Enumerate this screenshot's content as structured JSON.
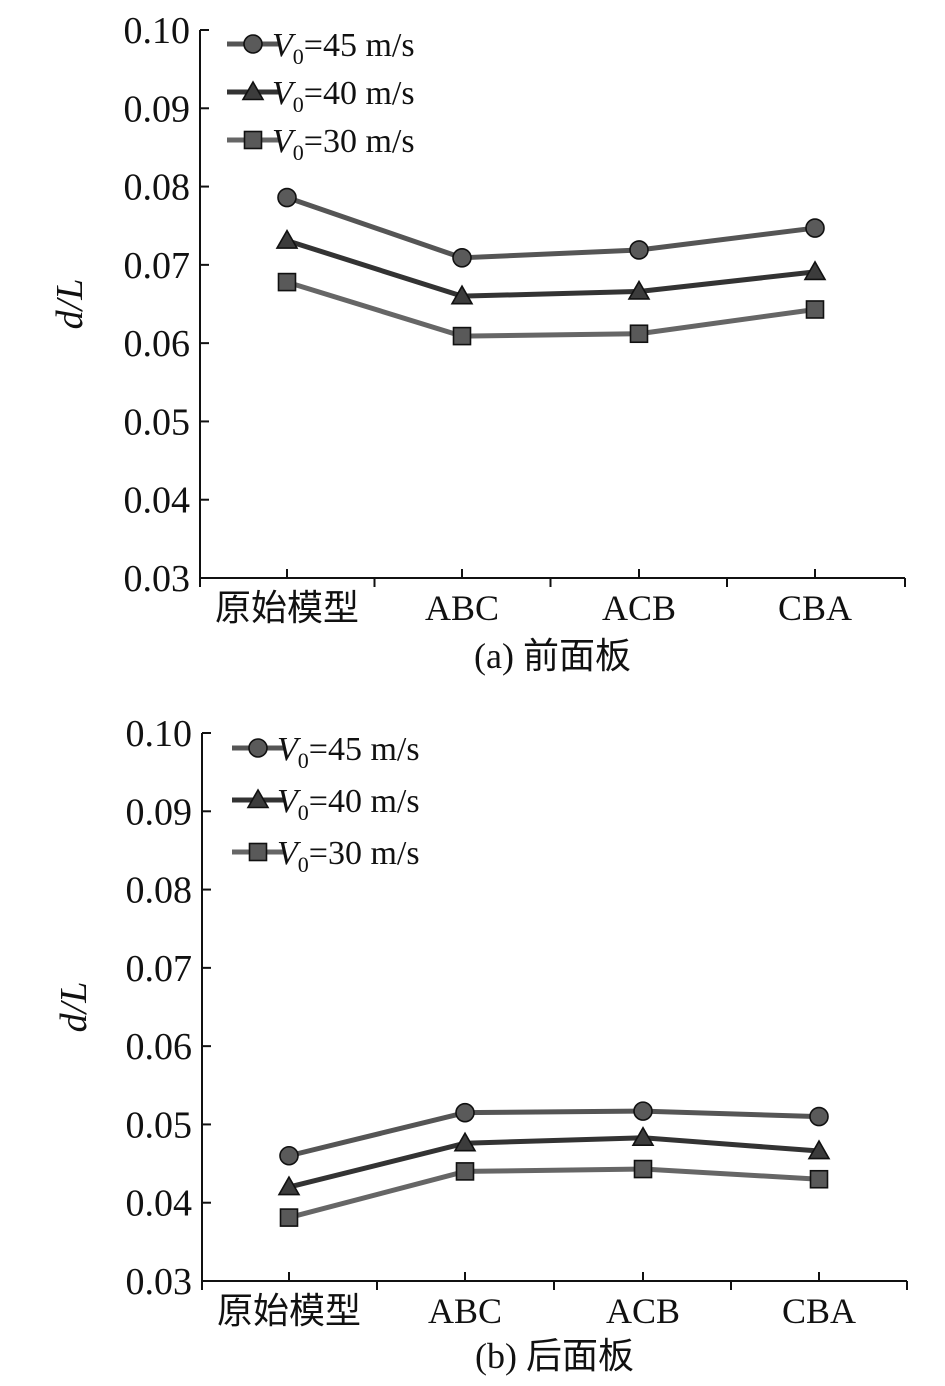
{
  "chart_data": [
    {
      "type": "line",
      "title": "(a) 前面板",
      "ylabel": "d/L",
      "xlabel": "",
      "ylim": [
        0.03,
        0.1
      ],
      "yticks": [
        "0.03",
        "0.04",
        "0.05",
        "0.06",
        "0.07",
        "0.08",
        "0.09",
        "0.10"
      ],
      "categories": [
        "原始模型",
        "ABC",
        "ACB",
        "CBA"
      ],
      "series": [
        {
          "name": "V0=45 m/s",
          "name_var": "V",
          "name_sub": "0",
          "name_rest": "=45 m/s",
          "marker": "circle",
          "color": "#555555",
          "values": [
            0.0786,
            0.0709,
            0.0719,
            0.0747
          ]
        },
        {
          "name": "V0=40 m/s",
          "name_var": "V",
          "name_sub": "0",
          "name_rest": "=40 m/s",
          "marker": "triangle",
          "color": "#333333",
          "values": [
            0.0731,
            0.066,
            0.0666,
            0.0691
          ]
        },
        {
          "name": "V0=30 m/s",
          "name_var": "V",
          "name_sub": "0",
          "name_rest": "=30 m/s",
          "marker": "square",
          "color": "#666666",
          "values": [
            0.0678,
            0.0609,
            0.0612,
            0.0643
          ]
        }
      ]
    },
    {
      "type": "line",
      "title": "(b) 后面板",
      "ylabel": "d/L",
      "xlabel": "",
      "ylim": [
        0.03,
        0.1
      ],
      "yticks": [
        "0.03",
        "0.04",
        "0.05",
        "0.06",
        "0.07",
        "0.08",
        "0.09",
        "0.10"
      ],
      "categories": [
        "原始模型",
        "ABC",
        "ACB",
        "CBA"
      ],
      "series": [
        {
          "name": "V0=45 m/s",
          "name_var": "V",
          "name_sub": "0",
          "name_rest": "=45 m/s",
          "marker": "circle",
          "color": "#555555",
          "values": [
            0.046,
            0.0515,
            0.0517,
            0.051
          ]
        },
        {
          "name": "V0=40 m/s",
          "name_var": "V",
          "name_sub": "0",
          "name_rest": "=40 m/s",
          "marker": "triangle",
          "color": "#333333",
          "values": [
            0.042,
            0.0476,
            0.0483,
            0.0466
          ]
        },
        {
          "name": "V0=30 m/s",
          "name_var": "V",
          "name_sub": "0",
          "name_rest": "=30 m/s",
          "marker": "square",
          "color": "#666666",
          "values": [
            0.0381,
            0.044,
            0.0443,
            0.043
          ]
        }
      ]
    }
  ]
}
